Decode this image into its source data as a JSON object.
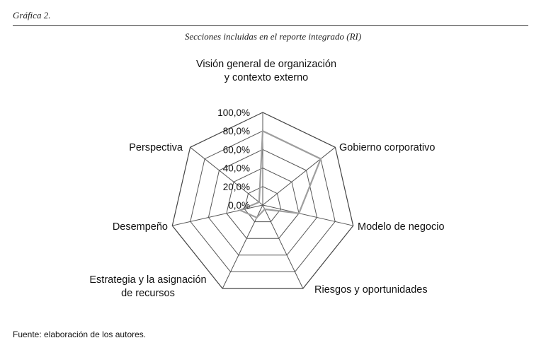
{
  "figure_label": "Gráfica 2.",
  "source_note": "Fuente: elaboración de los autores.",
  "chart_data": {
    "type": "radar",
    "title": "Secciones incluidas en el reporte integrado (RI)",
    "categories": [
      [
        "Visión general de organización",
        "y contexto externo"
      ],
      [
        "Gobierno corporativo"
      ],
      [
        "Modelo de negocio"
      ],
      [
        "Riesgos y oportunidades"
      ],
      [
        "Estrategia y la asignación",
        "de recursos"
      ],
      [
        "Desempeño"
      ],
      [
        "Perspectiva"
      ]
    ],
    "axis_ticks": [
      "0,0%",
      "20,0%",
      "40,0%",
      "60,0%",
      "80,0%",
      "100,0%"
    ],
    "rlim": [
      0,
      100
    ],
    "series": [
      {
        "values": [
          80,
          80,
          40,
          5,
          15,
          25,
          5
        ]
      }
    ],
    "grid": true,
    "legend": false
  }
}
